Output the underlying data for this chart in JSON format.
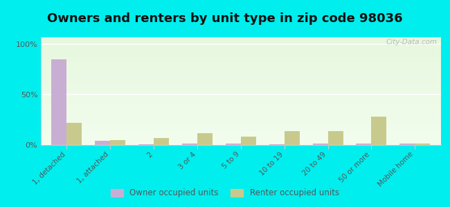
{
  "title": "Owners and renters by unit type in zip code 98036",
  "categories": [
    "1, detached",
    "1, attached",
    "2",
    "3 or 4",
    "5 to 9",
    "10 to 19",
    "20 to 49",
    "50 or more",
    "Mobile home"
  ],
  "owner_values": [
    85,
    4,
    0.5,
    1.5,
    1.5,
    0.5,
    1.5,
    1.5,
    1.5
  ],
  "renter_values": [
    22,
    5,
    7,
    12,
    8,
    14,
    14,
    28,
    1.5
  ],
  "owner_color": "#c9aed4",
  "renter_color": "#c8ca8d",
  "outer_bg": "#00eeee",
  "ylabel_ticks": [
    "0%",
    "50%",
    "100%"
  ],
  "ytick_vals": [
    0,
    50,
    100
  ],
  "ylim": [
    0,
    107
  ],
  "legend_owner": "Owner occupied units",
  "legend_renter": "Renter occupied units",
  "title_fontsize": 13,
  "watermark": "City-Data.com"
}
